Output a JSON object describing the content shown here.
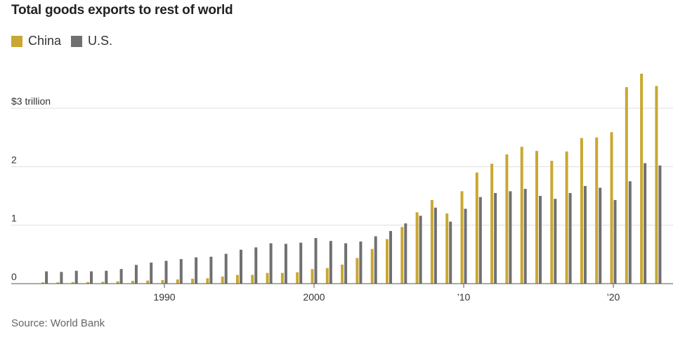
{
  "chart_data": {
    "type": "bar",
    "title": "Total goods exports to rest of world",
    "source": "Source: World Bank",
    "colors": {
      "China": "#c9a832",
      "U.S.": "#707070",
      "grid": "#dddddd",
      "axis": "#555555"
    },
    "ylim": [
      0,
      3.5
    ],
    "yticks": [
      {
        "value": 0,
        "label": "0"
      },
      {
        "value": 1,
        "label": "1"
      },
      {
        "value": 2,
        "label": "2"
      },
      {
        "value": 3,
        "label": "$3 trillion"
      }
    ],
    "xticks": [
      {
        "year": 1990,
        "label": "1990"
      },
      {
        "year": 2000,
        "label": "2000"
      },
      {
        "year": 2010,
        "label": "’10"
      },
      {
        "year": 2020,
        "label": "’20"
      }
    ],
    "categories": [
      1982,
      1983,
      1984,
      1985,
      1986,
      1987,
      1988,
      1989,
      1990,
      1991,
      1992,
      1993,
      1994,
      1995,
      1996,
      1997,
      1998,
      1999,
      2000,
      2001,
      2002,
      2003,
      2004,
      2005,
      2006,
      2007,
      2008,
      2009,
      2010,
      2011,
      2012,
      2013,
      2014,
      2015,
      2016,
      2017,
      2018,
      2019,
      2020,
      2021,
      2022,
      2023
    ],
    "series": [
      {
        "name": "China",
        "values": [
          0.022,
          0.022,
          0.026,
          0.027,
          0.031,
          0.039,
          0.048,
          0.053,
          0.062,
          0.072,
          0.085,
          0.092,
          0.121,
          0.149,
          0.151,
          0.183,
          0.184,
          0.195,
          0.249,
          0.266,
          0.326,
          0.438,
          0.593,
          0.762,
          0.969,
          1.22,
          1.43,
          1.2,
          1.58,
          1.9,
          2.05,
          2.21,
          2.34,
          2.27,
          2.1,
          2.26,
          2.49,
          2.5,
          2.59,
          3.36,
          3.59,
          3.38
        ]
      },
      {
        "name": "U.S.",
        "values": [
          0.21,
          0.2,
          0.22,
          0.21,
          0.22,
          0.25,
          0.32,
          0.36,
          0.39,
          0.42,
          0.45,
          0.46,
          0.51,
          0.58,
          0.62,
          0.69,
          0.68,
          0.7,
          0.78,
          0.73,
          0.69,
          0.72,
          0.81,
          0.9,
          1.03,
          1.16,
          1.3,
          1.06,
          1.28,
          1.48,
          1.55,
          1.58,
          1.62,
          1.5,
          1.45,
          1.55,
          1.67,
          1.64,
          1.43,
          1.75,
          2.06,
          2.02
        ]
      }
    ]
  }
}
